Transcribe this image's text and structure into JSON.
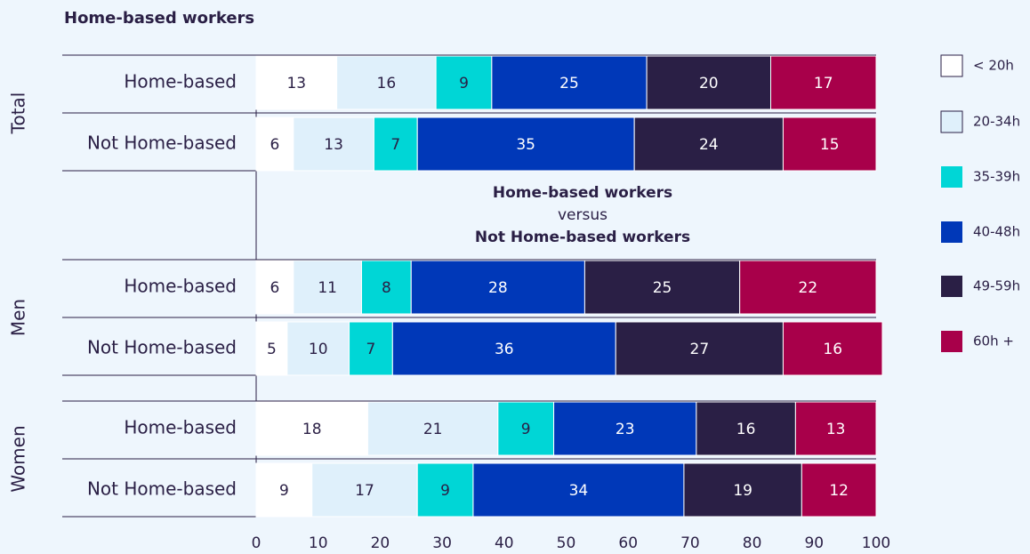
{
  "chart_data": {
    "type": "stacked-bar",
    "orientation": "horizontal",
    "title": "Home-based workers",
    "groups": [
      {
        "name": "Total",
        "categories": [
          "Home-based",
          "Not Home-based"
        ]
      },
      {
        "name": "Men",
        "categories": [
          "Home-based",
          "Not Home-based"
        ]
      },
      {
        "name": "Women",
        "categories": [
          "Home-based",
          "Not Home-based"
        ]
      }
    ],
    "series": [
      {
        "name": "< 20h",
        "color": "#ffffff",
        "values": [
          13,
          6,
          6,
          5,
          18,
          9
        ]
      },
      {
        "name": "20-34h",
        "color": "#dff0fb",
        "values": [
          16,
          13,
          11,
          10,
          21,
          17
        ]
      },
      {
        "name": "35-39h",
        "color": "#00d6d6",
        "values": [
          9,
          7,
          8,
          7,
          9,
          9
        ]
      },
      {
        "name": "40-48h",
        "color": "#0038b8",
        "values": [
          25,
          35,
          28,
          36,
          23,
          34
        ]
      },
      {
        "name": "49-59h",
        "color": "#2a1f45",
        "values": [
          20,
          24,
          25,
          27,
          16,
          19
        ]
      },
      {
        "name": "60h +",
        "color": "#a8004a",
        "values": [
          17,
          15,
          22,
          16,
          13,
          12
        ]
      }
    ],
    "annotation": [
      "Home-based workers",
      "versus",
      "Not Home-based workers"
    ],
    "xlim": [
      0,
      100
    ],
    "xticks": [
      0,
      10,
      20,
      30,
      40,
      50,
      60,
      70,
      80,
      90,
      100
    ],
    "legend": "right"
  }
}
